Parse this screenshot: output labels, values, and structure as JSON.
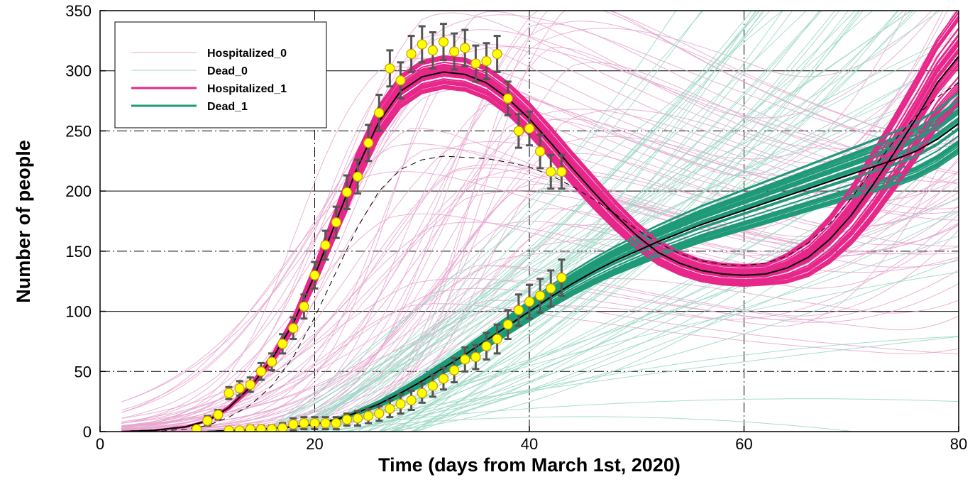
{
  "chart_data": {
    "type": "line",
    "xlabel": "Time (days from March 1st, 2020)",
    "ylabel": "Number of people",
    "xlim": [
      0,
      80
    ],
    "ylim": [
      0,
      350
    ],
    "xticks": [
      0,
      20,
      40,
      60,
      80
    ],
    "yticks": [
      0,
      50,
      100,
      150,
      200,
      250,
      300,
      350
    ],
    "grid": true,
    "legend_position": "top-left",
    "colors": {
      "hospitalized_0": "#e6a6cf",
      "dead_0": "#9fd9c6",
      "hospitalized_1": "#e7278a",
      "dead_1": "#1f9a78",
      "marker_fill": "#ffff00",
      "marker_edge": "#c99a00",
      "errorbar": "#555555"
    },
    "legend": [
      {
        "key": "hospitalized_0",
        "label": "Hospitalized_0"
      },
      {
        "key": "dead_0",
        "label": "Dead_0"
      },
      {
        "key": "hospitalized_1",
        "label": "Hospitalized_1"
      },
      {
        "key": "dead_1",
        "label": "Dead_1"
      }
    ],
    "series": [
      {
        "name": "Hospitalized_1",
        "x": [
          2,
          5,
          8,
          10,
          12,
          14,
          16,
          18,
          20,
          22,
          24,
          26,
          28,
          30,
          32,
          34,
          36,
          38,
          40,
          42,
          44,
          46,
          48,
          50,
          52,
          54,
          56,
          58,
          60,
          62,
          64,
          66,
          68,
          70,
          72,
          74,
          76,
          78,
          80
        ],
        "y": [
          0,
          1,
          4,
          9,
          20,
          37,
          60,
          90,
          130,
          175,
          220,
          258,
          283,
          295,
          299,
          297,
          290,
          277,
          260,
          240,
          219,
          199,
          180,
          163,
          149,
          140,
          134,
          131,
          130,
          131,
          136,
          145,
          160,
          180,
          205,
          232,
          260,
          290,
          312
        ]
      },
      {
        "name": "Dead_1",
        "x": [
          10,
          15,
          18,
          20,
          22,
          24,
          26,
          28,
          30,
          32,
          34,
          36,
          38,
          40,
          42,
          44,
          46,
          48,
          50,
          52,
          54,
          56,
          58,
          60,
          62,
          64,
          66,
          68,
          70,
          72,
          74,
          76,
          78,
          80
        ],
        "y": [
          0,
          2,
          4,
          6,
          10,
          16,
          23,
          32,
          42,
          53,
          64,
          76,
          88,
          100,
          112,
          123,
          133,
          142,
          150,
          158,
          165,
          172,
          178,
          184,
          190,
          196,
          202,
          208,
          214,
          220,
          226,
          233,
          243,
          256
        ]
      },
      {
        "name": "",
        "x": [
          2,
          5,
          8,
          10,
          12,
          14,
          16,
          18,
          20,
          22,
          24,
          26,
          28,
          30,
          32,
          34,
          36,
          38,
          40,
          42,
          44,
          46,
          48,
          50,
          52,
          54,
          56,
          58,
          60,
          62,
          64,
          66,
          68,
          70,
          72,
          74,
          76,
          78,
          80
        ],
        "y": [
          0,
          0,
          2,
          5,
          12,
          22,
          38,
          62,
          95,
          133,
          170,
          200,
          218,
          226,
          229,
          228,
          227,
          224,
          220,
          213,
          204,
          193,
          181,
          168,
          157,
          148,
          142,
          139,
          138,
          140,
          146,
          157,
          173,
          194,
          218,
          242,
          262,
          278,
          290
        ]
      }
    ],
    "observed_hospitalized": {
      "x": [
        9,
        10,
        11,
        12,
        13,
        14,
        15,
        16,
        17,
        18,
        19,
        20,
        21,
        22,
        23,
        24,
        25,
        26,
        27,
        28,
        29,
        30,
        31,
        32,
        33,
        34,
        35,
        36,
        37,
        38,
        39,
        40,
        41,
        42,
        43
      ],
      "y": [
        2,
        9,
        14,
        32,
        36,
        39,
        50,
        58,
        73,
        86,
        104,
        130,
        155,
        174,
        199,
        212,
        240,
        265,
        302,
        292,
        314,
        322,
        317,
        324,
        316,
        319,
        306,
        308,
        314,
        277,
        250,
        252,
        233,
        216,
        216
      ],
      "err": [
        2,
        4,
        4,
        5,
        6,
        6,
        7,
        7,
        8,
        9,
        10,
        11,
        12,
        13,
        14,
        14,
        15,
        15,
        15,
        15,
        15,
        15,
        15,
        15,
        15,
        15,
        15,
        15,
        15,
        14,
        14,
        14,
        14,
        14,
        14
      ]
    },
    "observed_dead": {
      "x": [
        12,
        13,
        14,
        15,
        16,
        17,
        18,
        19,
        20,
        21,
        22,
        23,
        24,
        25,
        26,
        27,
        28,
        29,
        30,
        31,
        32,
        33,
        34,
        35,
        36,
        37,
        38,
        39,
        40,
        41,
        42,
        43
      ],
      "y": [
        1,
        1,
        2,
        2,
        2,
        3,
        6,
        7,
        7,
        7,
        7,
        10,
        11,
        13,
        15,
        19,
        23,
        26,
        32,
        38,
        44,
        51,
        60,
        62,
        71,
        77,
        89,
        101,
        108,
        113,
        119,
        128
      ],
      "err": [
        2,
        2,
        3,
        3,
        3,
        4,
        5,
        5,
        5,
        5,
        5,
        5,
        6,
        6,
        6,
        7,
        8,
        8,
        8,
        9,
        9,
        10,
        10,
        10,
        11,
        12,
        12,
        13,
        14,
        14,
        15,
        15
      ]
    },
    "ensemble_0_hospitalized_count": 60,
    "ensemble_0_dead_count": 60,
    "ensemble_1_count": 45
  }
}
